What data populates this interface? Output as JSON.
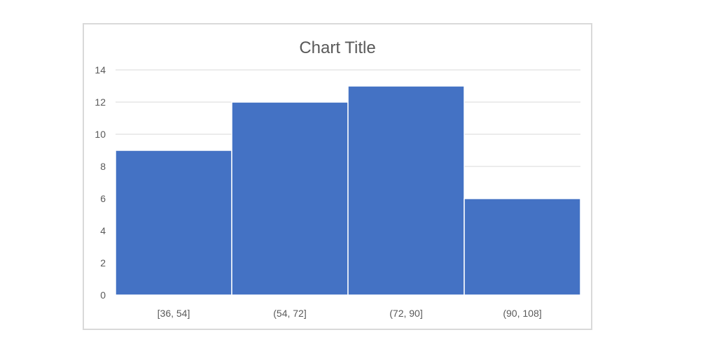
{
  "chart_data": {
    "type": "bar",
    "title": "Chart Title",
    "categories": [
      "[36, 54]",
      "(54, 72]",
      "(72, 90]",
      "(90, 108]"
    ],
    "values": [
      9,
      12,
      13,
      6
    ],
    "ylim": [
      0,
      14
    ],
    "yticks": [
      0,
      2,
      4,
      6,
      8,
      10,
      12,
      14
    ],
    "xlabel": "",
    "ylabel": "",
    "grid": true,
    "legend": "none",
    "bar_color": "#4472C4"
  }
}
